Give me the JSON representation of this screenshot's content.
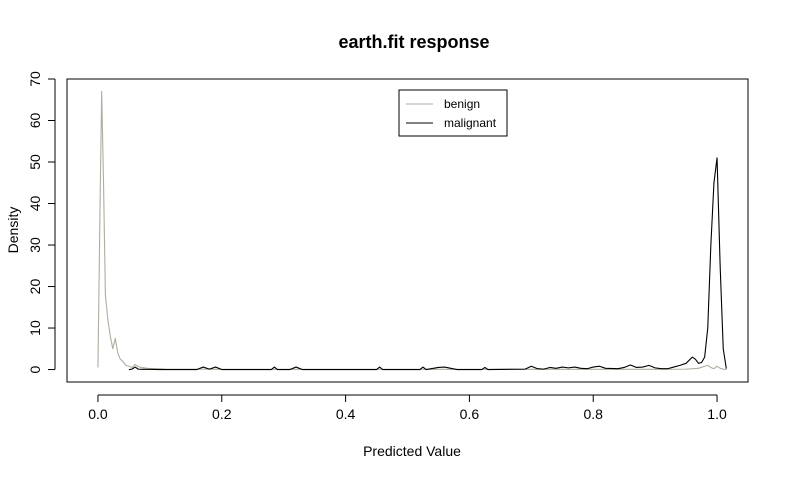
{
  "chart_data": {
    "type": "line",
    "title": "earth.fit response",
    "xlabel": "Predicted Value",
    "ylabel": "Density",
    "xlim": [
      -0.05,
      1.05
    ],
    "ylim": [
      -3,
      70
    ],
    "xticks": [
      0.0,
      0.2,
      0.4,
      0.6,
      0.8,
      1.0
    ],
    "xtick_labels": [
      "0.0",
      "0.2",
      "0.4",
      "0.6",
      "0.8",
      "1.0"
    ],
    "yticks": [
      0,
      10,
      20,
      30,
      40,
      50,
      60,
      70
    ],
    "ytick_labels": [
      "0",
      "10",
      "20",
      "30",
      "40",
      "50",
      "60",
      "70"
    ],
    "grid": false,
    "legend_position": "top-center",
    "series": [
      {
        "name": "benign",
        "color": "#b0aca0",
        "x": [
          0.0,
          0.003,
          0.006,
          0.009,
          0.012,
          0.016,
          0.02,
          0.024,
          0.028,
          0.032,
          0.036,
          0.04,
          0.045,
          0.05,
          0.055,
          0.06,
          0.065,
          0.07,
          0.08,
          0.09,
          0.1,
          0.11,
          0.12,
          0.13,
          0.15,
          0.2,
          0.3,
          0.4,
          0.5,
          0.6,
          0.7,
          0.8,
          0.9,
          0.95,
          0.97,
          0.98,
          0.985,
          0.99,
          0.995,
          1.0,
          1.005,
          1.01,
          1.015
        ],
        "y": [
          0.5,
          35,
          67,
          45,
          18,
          12,
          8,
          5,
          7.5,
          4,
          2.5,
          2,
          1,
          0.8,
          0.5,
          1.2,
          0.7,
          0.5,
          0.3,
          0.2,
          0.2,
          0.1,
          0.1,
          0.1,
          0.1,
          0.05,
          0.05,
          0.05,
          0.05,
          0.05,
          0.05,
          0.05,
          0.05,
          0.1,
          0.3,
          0.8,
          1.0,
          0.5,
          0.2,
          0.8,
          0.3,
          0.1,
          0.0
        ]
      },
      {
        "name": "malignant",
        "color": "#000000",
        "x": [
          0.05,
          0.055,
          0.06,
          0.065,
          0.07,
          0.08,
          0.1,
          0.12,
          0.16,
          0.17,
          0.18,
          0.19,
          0.2,
          0.21,
          0.28,
          0.285,
          0.29,
          0.31,
          0.32,
          0.33,
          0.45,
          0.455,
          0.46,
          0.52,
          0.525,
          0.53,
          0.55,
          0.56,
          0.57,
          0.58,
          0.62,
          0.625,
          0.63,
          0.69,
          0.7,
          0.71,
          0.72,
          0.73,
          0.74,
          0.75,
          0.76,
          0.77,
          0.78,
          0.79,
          0.8,
          0.81,
          0.82,
          0.84,
          0.85,
          0.86,
          0.87,
          0.88,
          0.89,
          0.9,
          0.91,
          0.92,
          0.93,
          0.94,
          0.95,
          0.96,
          0.965,
          0.97,
          0.975,
          0.98,
          0.985,
          0.99,
          0.995,
          1.0,
          1.005,
          1.01,
          1.015
        ],
        "y": [
          0.0,
          0.1,
          0.6,
          0.1,
          0.05,
          0.05,
          0.0,
          0.0,
          0.0,
          0.6,
          0.1,
          0.6,
          0.0,
          0.0,
          0.0,
          0.6,
          0.0,
          0.0,
          0.6,
          0.0,
          0.0,
          0.6,
          0.0,
          0.0,
          0.6,
          0.0,
          0.5,
          0.6,
          0.3,
          0.0,
          0.0,
          0.5,
          0.0,
          0.1,
          0.8,
          0.2,
          0.1,
          0.5,
          0.3,
          0.6,
          0.4,
          0.6,
          0.3,
          0.2,
          0.6,
          0.8,
          0.3,
          0.2,
          0.5,
          1.1,
          0.5,
          0.6,
          1.0,
          0.4,
          0.2,
          0.2,
          0.6,
          1.0,
          1.5,
          3.0,
          2.5,
          1.5,
          1.7,
          3.0,
          10,
          30,
          45,
          51,
          25,
          5,
          0.2
        ]
      }
    ]
  }
}
